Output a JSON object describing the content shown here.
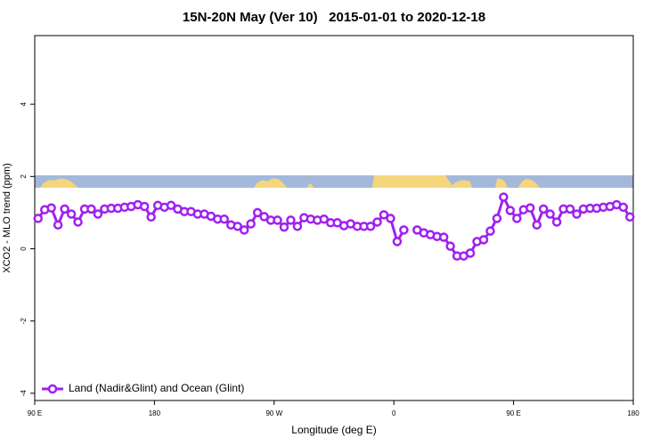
{
  "chart_data": {
    "type": "line",
    "title": "15N-20N May (Ver 10)   2015-01-01 to 2020-12-18",
    "xlabel": "Longitude (deg E)",
    "ylabel": "XCO2 - MLO trend (ppm)",
    "xlim": [
      90,
      540
    ],
    "xticks": [
      {
        "value": 90,
        "label": "90 E"
      },
      {
        "value": 180,
        "label": "180"
      },
      {
        "value": 270,
        "label": "90 W"
      },
      {
        "value": 360,
        "label": "0"
      },
      {
        "value": 450,
        "label": "90 E"
      },
      {
        "value": 540,
        "label": "180"
      }
    ],
    "ylim": [
      -4.2,
      5.9
    ],
    "yticks": [
      -4,
      -2,
      0,
      2,
      4
    ],
    "legend": "bottom-left",
    "x": [
      92.5,
      97.5,
      102.5,
      107.5,
      112.5,
      117.5,
      122.5,
      127.5,
      132.5,
      137.5,
      142.5,
      147.5,
      152.5,
      157.5,
      162.5,
      167.5,
      172.5,
      177.5,
      182.5,
      187.5,
      192.5,
      197.5,
      202.5,
      207.5,
      212.5,
      217.5,
      222.5,
      227.5,
      232.5,
      237.5,
      242.5,
      247.5,
      252.5,
      257.5,
      262.5,
      267.5,
      272.5,
      277.5,
      282.5,
      287.5,
      292.5,
      297.5,
      302.5,
      307.5,
      312.5,
      317.5,
      322.5,
      327.5,
      332.5,
      337.5,
      342.5,
      347.5,
      352.5,
      357.5,
      362.5,
      367.5,
      372.5,
      377.5,
      382.5,
      387.5,
      392.5,
      397.5,
      402.5,
      407.5,
      412.5,
      417.5,
      422.5,
      427.5,
      432.5,
      437.5,
      442.5,
      447.5,
      452.5,
      457.5,
      462.5,
      467.5,
      472.5,
      477.5,
      482.5,
      487.5,
      492.5,
      497.5,
      502.5,
      507.5,
      512.5,
      517.5,
      522.5,
      527.5,
      532.5,
      537.5
    ],
    "series": [
      {
        "name": "Land (Nadir&Glint) and Ocean (Glint)",
        "color": "#a020f0",
        "values": [
          0.84,
          1.08,
          1.13,
          0.66,
          1.1,
          0.96,
          0.74,
          1.1,
          1.1,
          0.96,
          1.1,
          1.12,
          1.12,
          1.15,
          1.17,
          1.22,
          1.17,
          0.88,
          1.2,
          1.15,
          1.2,
          1.1,
          1.03,
          1.03,
          0.96,
          0.96,
          0.9,
          0.82,
          0.82,
          0.66,
          0.62,
          0.52,
          0.69,
          1.0,
          0.89,
          0.79,
          0.79,
          0.6,
          0.79,
          0.62,
          0.86,
          0.82,
          0.79,
          0.82,
          0.72,
          0.72,
          0.64,
          0.69,
          0.62,
          0.62,
          0.62,
          0.74,
          0.94,
          0.84,
          0.2,
          0.52,
          null,
          0.52,
          0.44,
          0.39,
          0.34,
          0.32,
          0.07,
          -0.2,
          -0.2,
          -0.12,
          0.2,
          0.25,
          0.49,
          0.84,
          1.43,
          1.06,
          0.84,
          1.08,
          1.13,
          0.66,
          1.1,
          0.96,
          0.74,
          1.1,
          1.1,
          0.96,
          1.1,
          1.12,
          1.12,
          1.15,
          1.17,
          1.22,
          1.15,
          0.88
        ]
      }
    ]
  }
}
